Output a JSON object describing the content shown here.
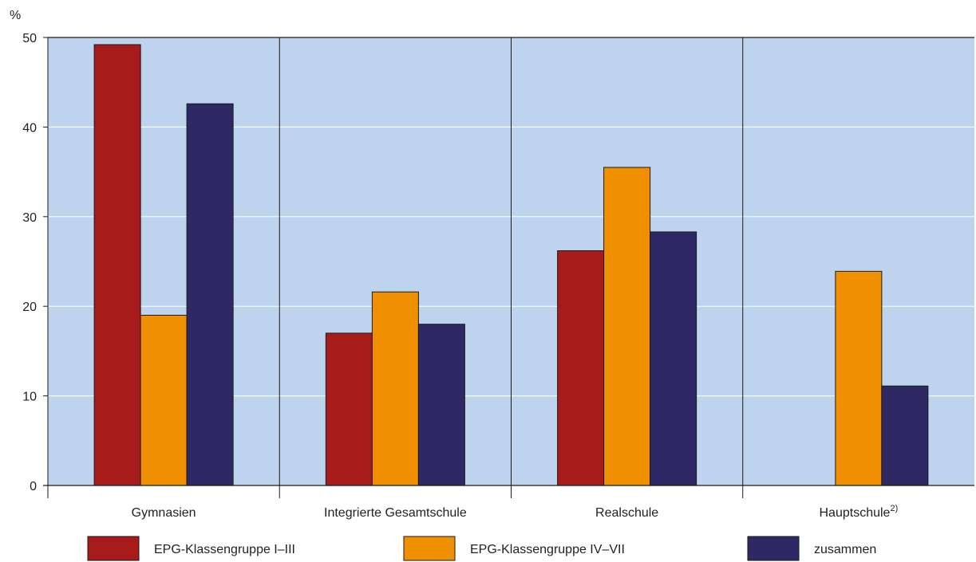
{
  "colors": {
    "plot_background": "#BED4EE",
    "axis": "#1a1a1a"
  },
  "chart_data": {
    "type": "bar",
    "unit_label": "%",
    "ylim": [
      0,
      50
    ],
    "yticks": [
      0,
      10,
      20,
      30,
      40,
      50
    ],
    "grid": "horizontal",
    "legend_position": "bottom",
    "categories": [
      "Gymnasien",
      "Integrierte Gesamtschule",
      "Realschule",
      "Hauptschule"
    ],
    "category_superscripts": [
      "",
      "",
      "",
      "2)"
    ],
    "series": [
      {
        "name": "EPG-Klassengruppe I–III",
        "color": "#A81B1B",
        "values": [
          49.2,
          17.0,
          26.2,
          null
        ]
      },
      {
        "name": "EPG-Klassengruppe IV–VII",
        "color": "#F09000",
        "values": [
          19.0,
          21.6,
          35.5,
          23.9
        ]
      },
      {
        "name": "zusammen",
        "color": "#2E2865",
        "values": [
          42.6,
          18.0,
          28.3,
          11.1
        ]
      }
    ]
  }
}
